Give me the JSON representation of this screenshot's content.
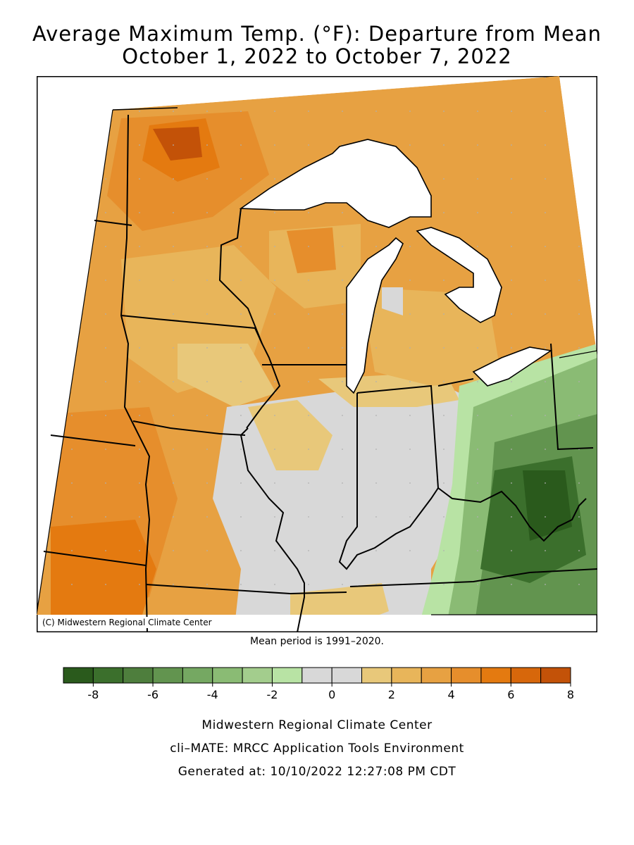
{
  "title_line1": "Average Maximum Temp. (°F): Departure from Mean",
  "title_line2": "October 1, 2022 to October 7, 2022",
  "credit": "(C) Midwestern Regional Climate Center",
  "mean_period": "Mean period is 1991–2020.",
  "legend": {
    "colors": [
      "#2a5a1c",
      "#3b6f2c",
      "#4e7e3d",
      "#62944f",
      "#75a862",
      "#8abb74",
      "#a3cd8d",
      "#b8e3a4",
      "#d8d8d8",
      "#d8d8d8",
      "#e8c87a",
      "#e8b55a",
      "#e7a142",
      "#e68e2c",
      "#e47a10",
      "#d7670b",
      "#c35208"
    ],
    "tick_labels": [
      "-8",
      "-6",
      "-4",
      "-2",
      "0",
      "2",
      "4",
      "6",
      "8"
    ]
  },
  "footer": {
    "org": "Midwestern Regional Climate Center",
    "tool": "cli–MATE: MRCC Application Tools Environment",
    "generated": "Generated at: 10/10/2022 12:27:08 PM CDT"
  }
}
